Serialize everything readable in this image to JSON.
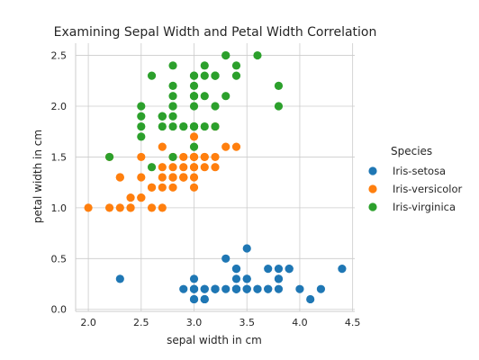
{
  "chart_data": {
    "type": "scatter",
    "title": "Examining Sepal Width and Petal Width Correlation",
    "xlabel": "sepal width in cm",
    "ylabel": "petal width in cm",
    "xlim": [
      1.88,
      4.52
    ],
    "ylim": [
      -0.02,
      2.62
    ],
    "xticks": [
      2.0,
      2.5,
      3.0,
      3.5,
      4.0,
      4.5
    ],
    "xtick_labels": [
      "2.0",
      "2.5",
      "3.0",
      "3.5",
      "4.0",
      "4.5"
    ],
    "yticks": [
      0.0,
      0.5,
      1.0,
      1.5,
      2.0,
      2.5
    ],
    "ytick_labels": [
      "0.0",
      "0.5",
      "1.0",
      "1.5",
      "2.0",
      "2.5"
    ],
    "grid": true,
    "legend_title": "Species",
    "legend_position": "right",
    "series": [
      {
        "name": "Iris-setosa",
        "color": "#1f77b4",
        "points": [
          [
            3.5,
            0.2
          ],
          [
            3.0,
            0.2
          ],
          [
            3.2,
            0.2
          ],
          [
            3.1,
            0.2
          ],
          [
            3.6,
            0.2
          ],
          [
            3.9,
            0.4
          ],
          [
            3.4,
            0.3
          ],
          [
            3.4,
            0.2
          ],
          [
            2.9,
            0.2
          ],
          [
            3.1,
            0.1
          ],
          [
            3.7,
            0.2
          ],
          [
            3.4,
            0.2
          ],
          [
            3.0,
            0.1
          ],
          [
            3.0,
            0.1
          ],
          [
            4.0,
            0.2
          ],
          [
            4.4,
            0.4
          ],
          [
            3.9,
            0.4
          ],
          [
            3.5,
            0.3
          ],
          [
            3.8,
            0.3
          ],
          [
            3.8,
            0.3
          ],
          [
            3.4,
            0.2
          ],
          [
            3.7,
            0.4
          ],
          [
            3.6,
            0.2
          ],
          [
            3.3,
            0.5
          ],
          [
            3.4,
            0.2
          ],
          [
            3.0,
            0.2
          ],
          [
            3.4,
            0.4
          ],
          [
            3.5,
            0.2
          ],
          [
            3.4,
            0.2
          ],
          [
            3.2,
            0.2
          ],
          [
            3.1,
            0.2
          ],
          [
            3.4,
            0.4
          ],
          [
            4.1,
            0.1
          ],
          [
            4.2,
            0.2
          ],
          [
            3.1,
            0.1
          ],
          [
            3.2,
            0.2
          ],
          [
            3.5,
            0.2
          ],
          [
            3.1,
            0.1
          ],
          [
            3.0,
            0.2
          ],
          [
            3.4,
            0.2
          ],
          [
            3.5,
            0.3
          ],
          [
            2.3,
            0.3
          ],
          [
            3.2,
            0.2
          ],
          [
            3.5,
            0.6
          ],
          [
            3.8,
            0.4
          ],
          [
            3.0,
            0.3
          ],
          [
            3.8,
            0.2
          ],
          [
            3.2,
            0.2
          ],
          [
            3.7,
            0.2
          ],
          [
            3.3,
            0.2
          ]
        ]
      },
      {
        "name": "Iris-versicolor",
        "color": "#ff7f0e",
        "points": [
          [
            3.2,
            1.4
          ],
          [
            3.2,
            1.5
          ],
          [
            3.1,
            1.5
          ],
          [
            2.3,
            1.3
          ],
          [
            2.8,
            1.5
          ],
          [
            2.8,
            1.3
          ],
          [
            3.3,
            1.6
          ],
          [
            2.4,
            1.0
          ],
          [
            2.9,
            1.3
          ],
          [
            2.7,
            1.4
          ],
          [
            2.0,
            1.0
          ],
          [
            3.0,
            1.5
          ],
          [
            2.2,
            1.0
          ],
          [
            2.9,
            1.4
          ],
          [
            2.9,
            1.3
          ],
          [
            3.1,
            1.4
          ],
          [
            3.0,
            1.5
          ],
          [
            2.7,
            1.0
          ],
          [
            2.2,
            1.5
          ],
          [
            2.5,
            1.1
          ],
          [
            3.2,
            1.8
          ],
          [
            2.8,
            1.3
          ],
          [
            2.5,
            1.5
          ],
          [
            2.8,
            1.2
          ],
          [
            2.9,
            1.3
          ],
          [
            3.0,
            1.4
          ],
          [
            2.8,
            1.4
          ],
          [
            3.0,
            1.7
          ],
          [
            2.9,
            1.5
          ],
          [
            2.6,
            1.0
          ],
          [
            2.4,
            1.1
          ],
          [
            2.4,
            1.0
          ],
          [
            2.7,
            1.2
          ],
          [
            2.7,
            1.6
          ],
          [
            3.0,
            1.5
          ],
          [
            3.4,
            1.6
          ],
          [
            3.1,
            1.5
          ],
          [
            2.3,
            1.3
          ],
          [
            3.0,
            1.3
          ],
          [
            2.5,
            1.3
          ],
          [
            2.6,
            1.2
          ],
          [
            3.0,
            1.4
          ],
          [
            2.6,
            1.2
          ],
          [
            2.3,
            1.0
          ],
          [
            2.7,
            1.3
          ],
          [
            3.0,
            1.2
          ],
          [
            2.9,
            1.3
          ],
          [
            2.9,
            1.3
          ],
          [
            2.5,
            1.1
          ],
          [
            2.8,
            1.3
          ]
        ]
      },
      {
        "name": "Iris-virginica",
        "color": "#2ca02c",
        "points": [
          [
            3.3,
            2.5
          ],
          [
            2.7,
            1.9
          ],
          [
            3.0,
            2.1
          ],
          [
            2.9,
            1.8
          ],
          [
            3.0,
            2.2
          ],
          [
            3.0,
            2.1
          ],
          [
            2.5,
            1.7
          ],
          [
            2.9,
            1.8
          ],
          [
            2.5,
            1.8
          ],
          [
            3.6,
            2.5
          ],
          [
            3.2,
            2.0
          ],
          [
            2.7,
            1.9
          ],
          [
            3.0,
            2.1
          ],
          [
            2.5,
            2.0
          ],
          [
            2.8,
            2.4
          ],
          [
            3.2,
            2.3
          ],
          [
            3.0,
            1.8
          ],
          [
            3.8,
            2.2
          ],
          [
            2.6,
            2.3
          ],
          [
            2.2,
            1.5
          ],
          [
            3.2,
            2.3
          ],
          [
            2.8,
            2.0
          ],
          [
            2.8,
            2.0
          ],
          [
            2.7,
            1.8
          ],
          [
            3.3,
            2.1
          ],
          [
            3.2,
            1.8
          ],
          [
            2.8,
            1.8
          ],
          [
            3.0,
            1.8
          ],
          [
            2.8,
            2.1
          ],
          [
            3.0,
            1.6
          ],
          [
            2.8,
            1.9
          ],
          [
            3.8,
            2.0
          ],
          [
            2.8,
            2.2
          ],
          [
            2.8,
            1.5
          ],
          [
            2.6,
            1.4
          ],
          [
            3.0,
            2.3
          ],
          [
            3.4,
            2.4
          ],
          [
            3.1,
            1.8
          ],
          [
            3.0,
            1.8
          ],
          [
            3.1,
            2.1
          ],
          [
            3.1,
            2.4
          ],
          [
            3.1,
            2.3
          ],
          [
            2.7,
            1.9
          ],
          [
            3.2,
            2.3
          ],
          [
            3.3,
            2.5
          ],
          [
            3.0,
            2.3
          ],
          [
            2.5,
            1.9
          ],
          [
            3.0,
            2.0
          ],
          [
            3.4,
            2.3
          ],
          [
            3.0,
            1.8
          ]
        ]
      }
    ]
  }
}
